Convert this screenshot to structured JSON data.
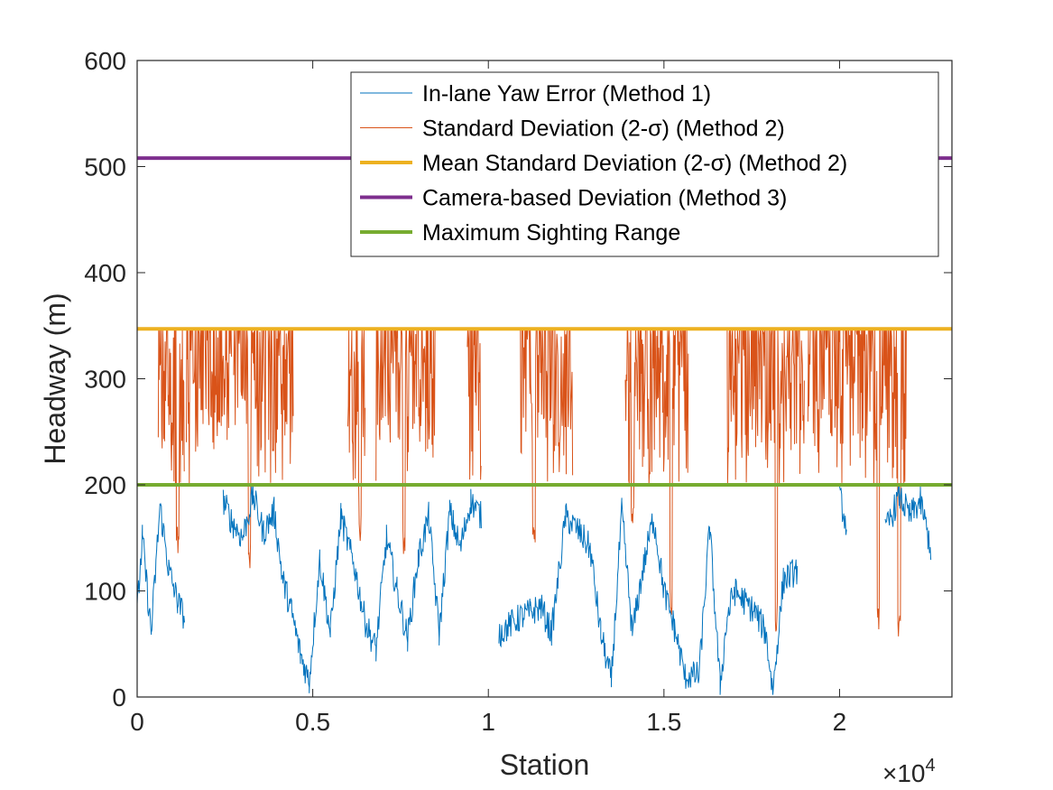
{
  "chart_data": {
    "type": "line",
    "xlabel": "Station",
    "ylabel": "Headway (m)",
    "xlim": [
      0,
      23200
    ],
    "ylim": [
      0,
      600
    ],
    "x_ticks": [
      0,
      5000,
      10000,
      15000,
      20000
    ],
    "x_tick_labels": [
      "0",
      "0.5",
      "1",
      "1.5",
      "2"
    ],
    "x_exponent": {
      "prefix": "×10",
      "power": "4"
    },
    "y_ticks": [
      0,
      100,
      200,
      300,
      400,
      500,
      600
    ],
    "y_tick_labels": [
      "0",
      "100",
      "200",
      "300",
      "400",
      "500",
      "600"
    ],
    "grid": false,
    "legend_position": "top-right",
    "series": [
      {
        "name": "In-lane Yaw Error (Method 1)",
        "color": "#0072BD",
        "kind": "noisy-line",
        "x": [
          0,
          150,
          400,
          650,
          900,
          1150,
          1350,
          2450,
          2700,
          3000,
          3300,
          3600,
          3900,
          4150,
          4400,
          4650,
          4900,
          5200,
          5500,
          5800,
          6200,
          6500,
          6800,
          7100,
          7400,
          7700,
          8000,
          8300,
          8600,
          8900,
          9200,
          9500,
          9800,
          10300,
          10900,
          11200,
          11500,
          11800,
          12200,
          12600,
          12900,
          13200,
          13500,
          13800,
          14100,
          14400,
          14700,
          15000,
          15300,
          15600,
          16000,
          16300,
          16600,
          16800,
          17000,
          17300,
          17600,
          17900,
          18100,
          18400,
          18800,
          20000,
          20200,
          21300,
          21700,
          22000,
          22300,
          22600
        ],
        "y": [
          80,
          150,
          60,
          180,
          120,
          90,
          75,
          185,
          165,
          150,
          190,
          155,
          175,
          110,
          80,
          40,
          15,
          130,
          60,
          170,
          120,
          70,
          45,
          150,
          100,
          55,
          130,
          170,
          60,
          175,
          140,
          185,
          170,
          60,
          75,
          80,
          85,
          60,
          170,
          155,
          140,
          60,
          15,
          175,
          60,
          120,
          170,
          100,
          65,
          20,
          20,
          160,
          10,
          75,
          100,
          90,
          80,
          60,
          5,
          110,
          120,
          190,
          160,
          155,
          190,
          170,
          185,
          140
        ],
        "gaps_after_x": [
          1350,
          9800,
          18800,
          20200
        ]
      },
      {
        "name": "Standard Deviation (2-σ) (Method 2)",
        "color": "#D95319",
        "kind": "spikes",
        "segments": [
          [
            600,
            1350
          ],
          [
            1400,
            2700
          ],
          [
            2750,
            4450
          ],
          [
            6000,
            6500
          ],
          [
            6800,
            8500
          ],
          [
            9400,
            9800
          ],
          [
            10900,
            12400
          ],
          [
            13900,
            15700
          ],
          [
            16800,
            19000
          ],
          [
            19100,
            21900
          ]
        ],
        "min_values": [
          {
            "x": 1150,
            "y": 135
          },
          {
            "x": 3200,
            "y": 120
          },
          {
            "x": 6350,
            "y": 145
          },
          {
            "x": 7600,
            "y": 130
          },
          {
            "x": 11300,
            "y": 140
          },
          {
            "x": 14100,
            "y": 150
          },
          {
            "x": 15200,
            "y": 75
          },
          {
            "x": 18200,
            "y": 60
          },
          {
            "x": 21100,
            "y": 55
          },
          {
            "x": 21700,
            "y": 55
          }
        ],
        "max_value": 347
      },
      {
        "name": "Mean Standard Deviation (2-σ) (Method 2)",
        "color": "#EDB120",
        "kind": "hline",
        "value": 347
      },
      {
        "name": "Camera-based Deviation (Method 3)",
        "color": "#7E2F8E",
        "kind": "hline",
        "value": 508
      },
      {
        "name": "Maximum Sighting Range",
        "color": "#77AC30",
        "kind": "hline",
        "value": 200
      }
    ]
  }
}
